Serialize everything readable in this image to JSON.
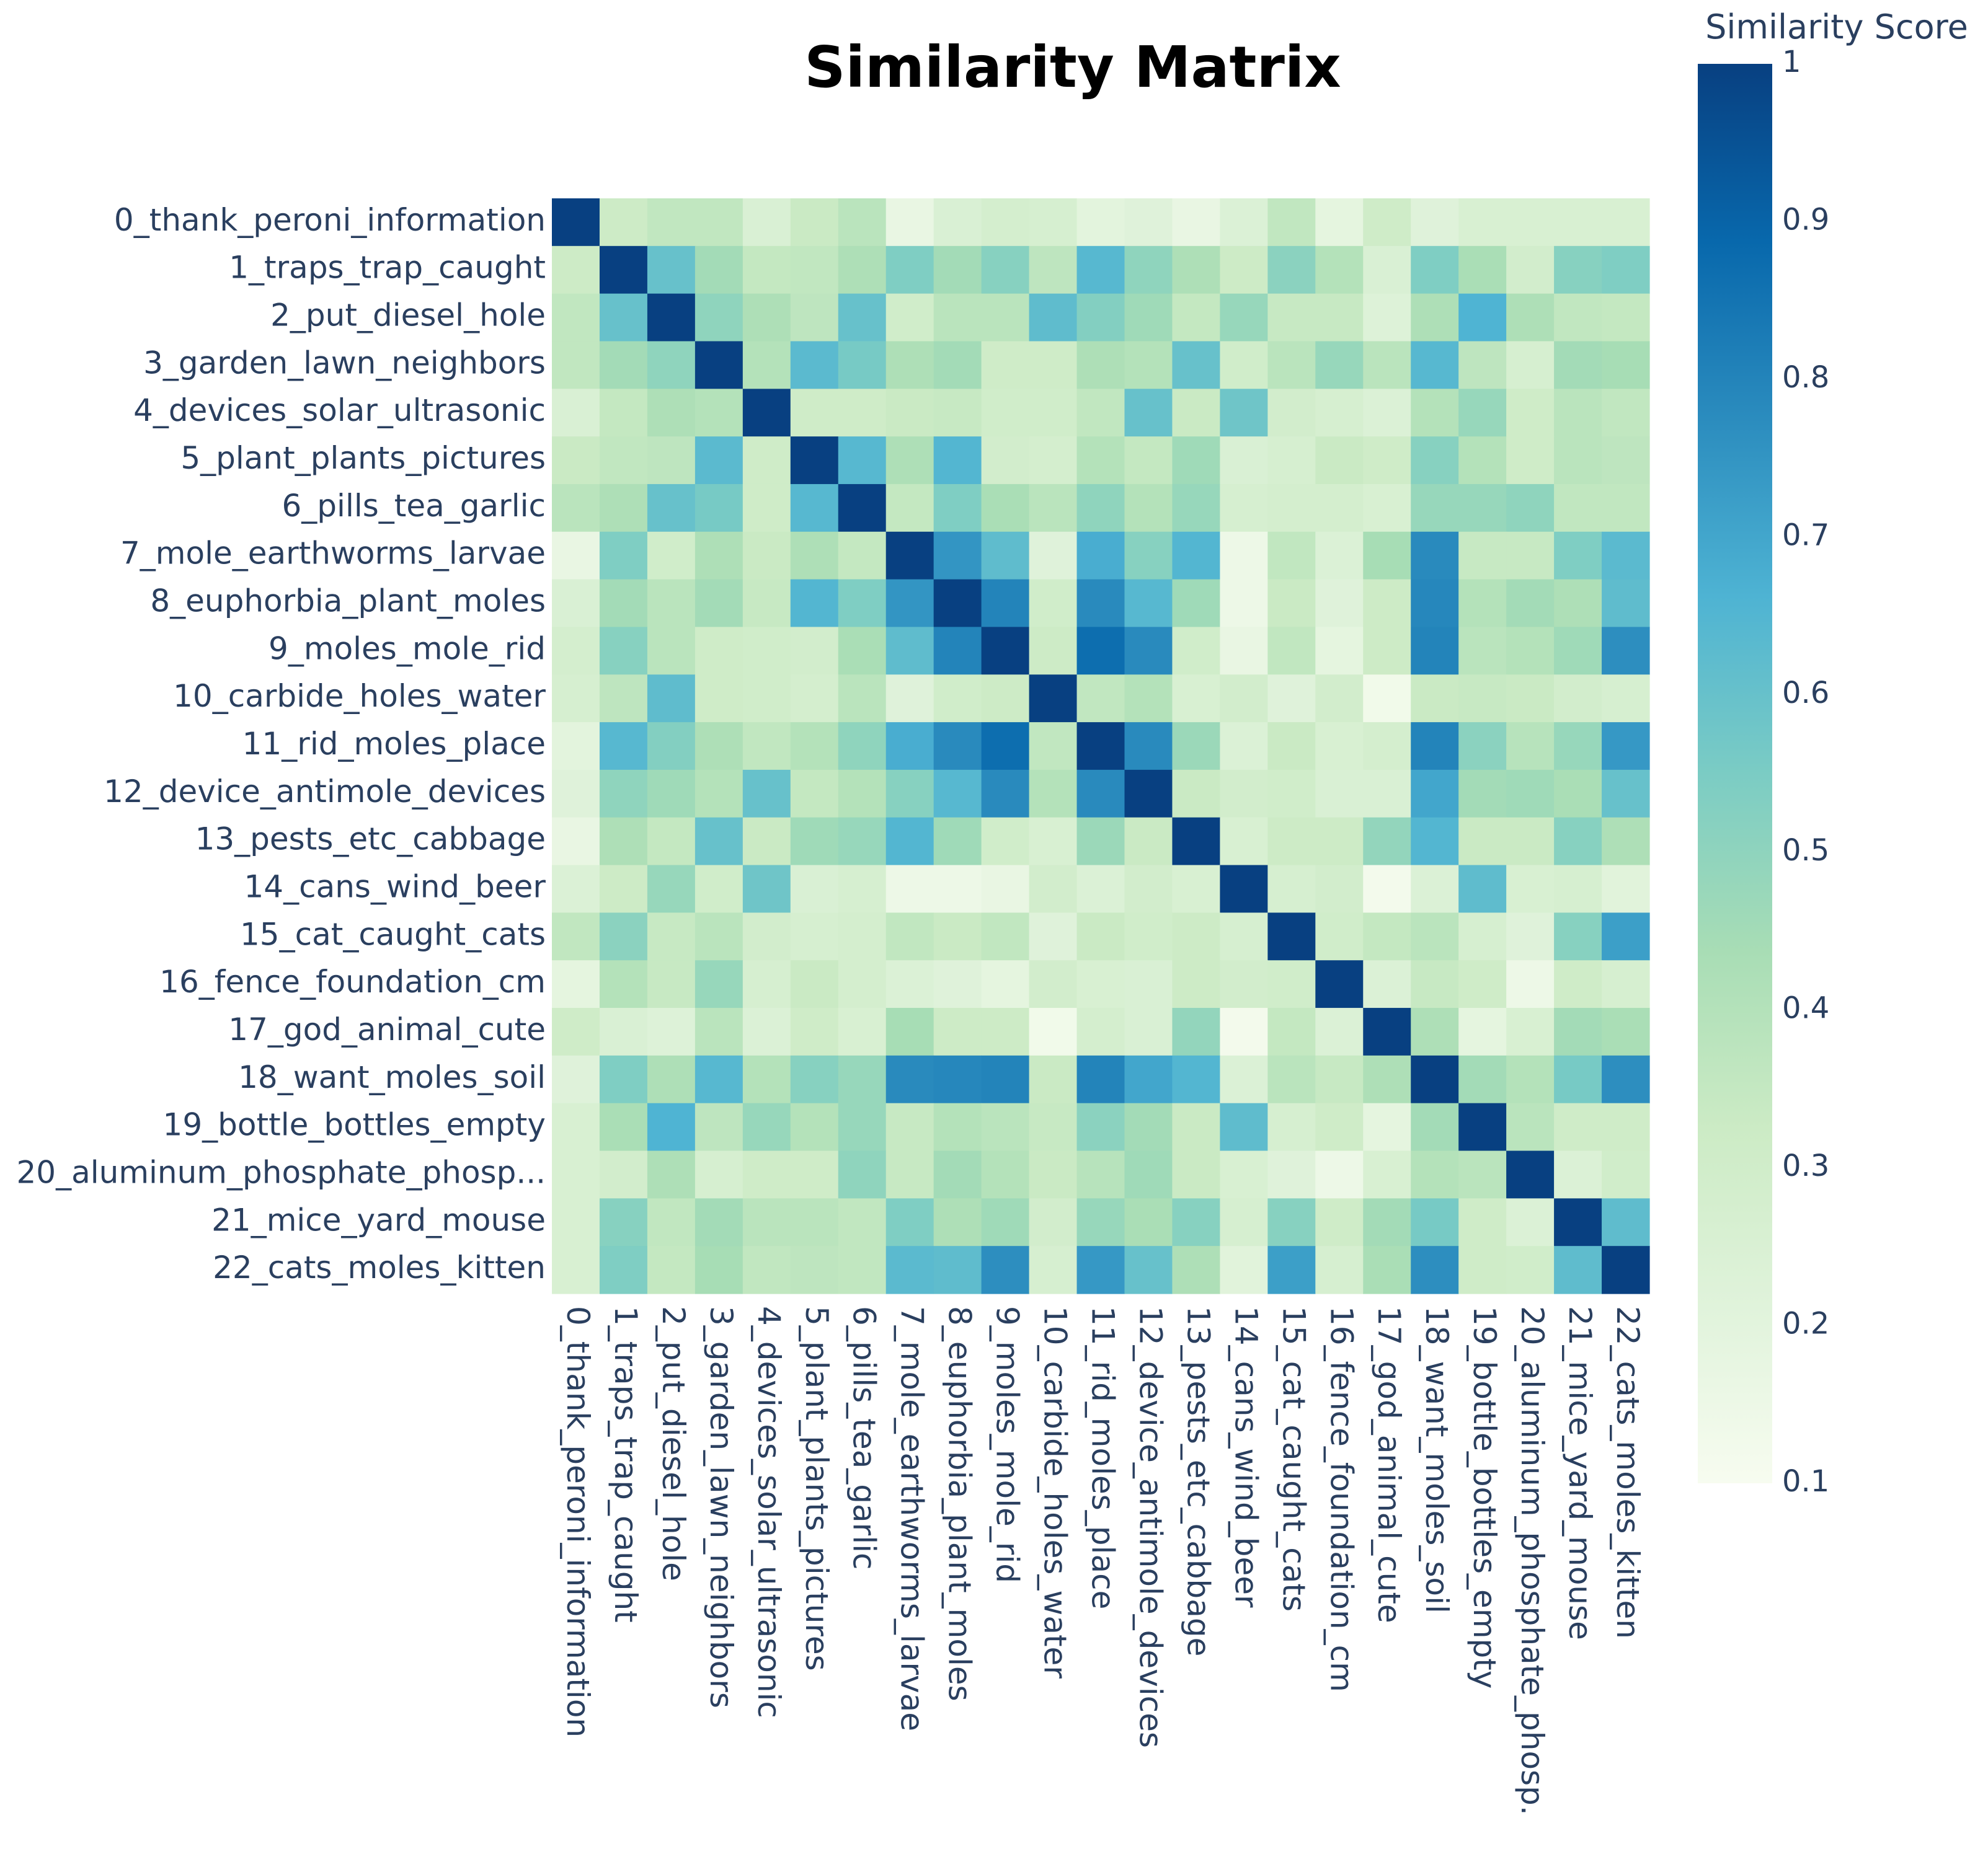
{
  "chart_data": {
    "type": "heatmap",
    "title": "Similarity Matrix",
    "colorbar": {
      "title": "Similarity Score",
      "range": [
        0.1,
        1
      ],
      "ticks": [
        "0.1",
        "0.2",
        "0.3",
        "0.4",
        "0.5",
        "0.6",
        "0.7",
        "0.8",
        "0.9",
        "1"
      ],
      "colorscale": [
        [
          0.0,
          "#f7fcf0"
        ],
        [
          0.125,
          "#e0f3db"
        ],
        [
          0.25,
          "#ccebc5"
        ],
        [
          0.375,
          "#a8ddb5"
        ],
        [
          0.5,
          "#7bccc4"
        ],
        [
          0.625,
          "#4eb3d3"
        ],
        [
          0.75,
          "#2b8cbe"
        ],
        [
          0.875,
          "#0868ac"
        ],
        [
          1.0,
          "#084081"
        ]
      ]
    },
    "labels": [
      "0_thank_peroni_information",
      "1_traps_trap_caught",
      "2_put_diesel_hole",
      "3_garden_lawn_neighbors",
      "4_devices_solar_ultrasonic",
      "5_plant_plants_pictures",
      "6_pills_tea_garlic",
      "7_mole_earthworms_larvae",
      "8_euphorbia_plant_moles",
      "9_moles_mole_rid",
      "10_carbide_holes_water",
      "11_rid_moles_place",
      "12_device_antimole_devices",
      "13_pests_etc_cabbage",
      "14_cans_wind_beer",
      "15_cat_caught_cats",
      "16_fence_foundation_cm",
      "17_god_animal_cute",
      "18_want_moles_soil",
      "19_bottle_bottles_empty",
      "20_aluminum_phosphate_phosp...",
      "21_mice_yard_mouse",
      "22_cats_moles_kitten"
    ],
    "x_tick_labels": [
      "0_thank_peroni_information",
      "1_traps_trap_caught",
      "2_put_diesel_hole",
      "3_garden_lawn_neighbors",
      "4_devices_solar_ultrasonic",
      "5_plant_plants_pictures",
      "6_pills_tea_garlic",
      "7_mole_earthworms_larvae",
      "8_euphorbia_plant_moles",
      "9_moles_mole_rid",
      "10_carbide_holes_water",
      "11_rid_moles_place",
      "12_device_antimole_devices",
      "13_pests_etc_cabbage",
      "14_cans_wind_beer",
      "15_cat_caught_cats",
      "16_fence_foundation_cm",
      "17_god_animal_cute",
      "18_want_moles_soil",
      "19_bottle_bottles_empty",
      "20_aluminum_phosphate_phosp.",
      "21_mice_yard_mouse",
      "22_cats_moles_kitten"
    ],
    "z": [
      [
        1.0,
        0.32,
        0.36,
        0.36,
        0.25,
        0.33,
        0.38,
        0.17,
        0.25,
        0.28,
        0.27,
        0.2,
        0.22,
        0.17,
        0.24,
        0.36,
        0.19,
        0.31,
        0.22,
        0.26,
        0.26,
        0.26,
        0.26
      ],
      [
        0.32,
        1.0,
        0.6,
        0.45,
        0.35,
        0.36,
        0.42,
        0.54,
        0.45,
        0.52,
        0.37,
        0.64,
        0.5,
        0.42,
        0.32,
        0.51,
        0.4,
        0.25,
        0.54,
        0.43,
        0.29,
        0.52,
        0.54
      ],
      [
        0.36,
        0.6,
        1.0,
        0.5,
        0.42,
        0.37,
        0.6,
        0.3,
        0.38,
        0.38,
        0.62,
        0.53,
        0.46,
        0.35,
        0.48,
        0.34,
        0.34,
        0.23,
        0.42,
        0.66,
        0.42,
        0.36,
        0.35
      ],
      [
        0.36,
        0.45,
        0.5,
        1.0,
        0.4,
        0.63,
        0.56,
        0.42,
        0.45,
        0.31,
        0.31,
        0.42,
        0.4,
        0.6,
        0.3,
        0.38,
        0.48,
        0.38,
        0.64,
        0.37,
        0.27,
        0.45,
        0.44
      ],
      [
        0.25,
        0.35,
        0.42,
        0.4,
        1.0,
        0.31,
        0.31,
        0.33,
        0.34,
        0.3,
        0.3,
        0.36,
        0.6,
        0.33,
        0.58,
        0.29,
        0.27,
        0.24,
        0.4,
        0.48,
        0.31,
        0.38,
        0.36
      ],
      [
        0.33,
        0.36,
        0.37,
        0.63,
        0.31,
        1.0,
        0.64,
        0.42,
        0.65,
        0.29,
        0.28,
        0.4,
        0.35,
        0.46,
        0.25,
        0.27,
        0.33,
        0.31,
        0.52,
        0.4,
        0.31,
        0.38,
        0.37
      ],
      [
        0.38,
        0.42,
        0.6,
        0.56,
        0.31,
        0.64,
        1.0,
        0.35,
        0.54,
        0.43,
        0.38,
        0.5,
        0.4,
        0.48,
        0.27,
        0.28,
        0.28,
        0.26,
        0.48,
        0.48,
        0.5,
        0.36,
        0.36
      ],
      [
        0.17,
        0.54,
        0.3,
        0.42,
        0.33,
        0.42,
        0.35,
        1.0,
        0.75,
        0.62,
        0.22,
        0.68,
        0.52,
        0.65,
        0.15,
        0.36,
        0.24,
        0.44,
        0.78,
        0.34,
        0.34,
        0.54,
        0.63
      ],
      [
        0.25,
        0.45,
        0.38,
        0.45,
        0.34,
        0.65,
        0.54,
        0.75,
        1.0,
        0.8,
        0.3,
        0.78,
        0.64,
        0.46,
        0.15,
        0.33,
        0.22,
        0.32,
        0.79,
        0.4,
        0.45,
        0.42,
        0.62
      ],
      [
        0.28,
        0.52,
        0.38,
        0.31,
        0.3,
        0.29,
        0.43,
        0.62,
        0.8,
        1.0,
        0.32,
        0.87,
        0.78,
        0.3,
        0.17,
        0.36,
        0.19,
        0.32,
        0.8,
        0.38,
        0.4,
        0.46,
        0.77
      ],
      [
        0.27,
        0.37,
        0.62,
        0.31,
        0.3,
        0.28,
        0.38,
        0.22,
        0.3,
        0.32,
        1.0,
        0.36,
        0.4,
        0.26,
        0.29,
        0.22,
        0.29,
        0.13,
        0.33,
        0.34,
        0.33,
        0.29,
        0.27
      ],
      [
        0.2,
        0.64,
        0.53,
        0.42,
        0.36,
        0.4,
        0.5,
        0.68,
        0.78,
        0.87,
        0.36,
        1.0,
        0.78,
        0.47,
        0.24,
        0.33,
        0.26,
        0.28,
        0.8,
        0.51,
        0.39,
        0.48,
        0.74
      ],
      [
        0.22,
        0.5,
        0.46,
        0.4,
        0.6,
        0.35,
        0.4,
        0.52,
        0.64,
        0.78,
        0.4,
        0.78,
        1.0,
        0.33,
        0.29,
        0.3,
        0.25,
        0.25,
        0.7,
        0.45,
        0.46,
        0.43,
        0.6
      ],
      [
        0.17,
        0.42,
        0.35,
        0.6,
        0.33,
        0.46,
        0.48,
        0.65,
        0.46,
        0.3,
        0.26,
        0.47,
        0.33,
        1.0,
        0.26,
        0.32,
        0.32,
        0.49,
        0.65,
        0.33,
        0.33,
        0.52,
        0.42
      ],
      [
        0.24,
        0.32,
        0.48,
        0.3,
        0.58,
        0.25,
        0.27,
        0.15,
        0.15,
        0.17,
        0.29,
        0.24,
        0.29,
        0.26,
        1.0,
        0.27,
        0.29,
        0.12,
        0.24,
        0.62,
        0.26,
        0.27,
        0.21
      ],
      [
        0.36,
        0.51,
        0.34,
        0.38,
        0.29,
        0.27,
        0.28,
        0.36,
        0.33,
        0.36,
        0.22,
        0.33,
        0.3,
        0.32,
        0.27,
        1.0,
        0.3,
        0.35,
        0.38,
        0.27,
        0.22,
        0.52,
        0.72
      ],
      [
        0.19,
        0.4,
        0.34,
        0.48,
        0.27,
        0.33,
        0.28,
        0.24,
        0.22,
        0.19,
        0.29,
        0.26,
        0.25,
        0.32,
        0.29,
        0.3,
        1.0,
        0.24,
        0.34,
        0.31,
        0.15,
        0.31,
        0.27
      ],
      [
        0.31,
        0.25,
        0.23,
        0.38,
        0.24,
        0.31,
        0.26,
        0.44,
        0.32,
        0.32,
        0.13,
        0.28,
        0.25,
        0.49,
        0.12,
        0.35,
        0.24,
        1.0,
        0.42,
        0.19,
        0.26,
        0.45,
        0.43
      ],
      [
        0.22,
        0.54,
        0.42,
        0.64,
        0.4,
        0.52,
        0.48,
        0.78,
        0.79,
        0.8,
        0.33,
        0.8,
        0.7,
        0.65,
        0.24,
        0.38,
        0.34,
        0.42,
        1.0,
        0.45,
        0.4,
        0.56,
        0.77
      ],
      [
        0.26,
        0.43,
        0.66,
        0.37,
        0.48,
        0.4,
        0.48,
        0.34,
        0.4,
        0.38,
        0.34,
        0.51,
        0.45,
        0.33,
        0.62,
        0.27,
        0.31,
        0.19,
        0.45,
        1.0,
        0.38,
        0.31,
        0.31
      ],
      [
        0.26,
        0.29,
        0.42,
        0.27,
        0.31,
        0.31,
        0.5,
        0.34,
        0.45,
        0.4,
        0.33,
        0.39,
        0.46,
        0.33,
        0.26,
        0.22,
        0.15,
        0.26,
        0.4,
        0.38,
        1.0,
        0.24,
        0.3
      ],
      [
        0.26,
        0.52,
        0.36,
        0.45,
        0.38,
        0.38,
        0.36,
        0.54,
        0.42,
        0.46,
        0.29,
        0.48,
        0.43,
        0.52,
        0.27,
        0.52,
        0.31,
        0.45,
        0.56,
        0.31,
        0.24,
        1.0,
        0.62
      ],
      [
        0.26,
        0.54,
        0.35,
        0.44,
        0.36,
        0.37,
        0.36,
        0.63,
        0.62,
        0.77,
        0.27,
        0.74,
        0.6,
        0.42,
        0.21,
        0.72,
        0.27,
        0.43,
        0.77,
        0.31,
        0.3,
        0.62,
        1.0
      ]
    ]
  }
}
